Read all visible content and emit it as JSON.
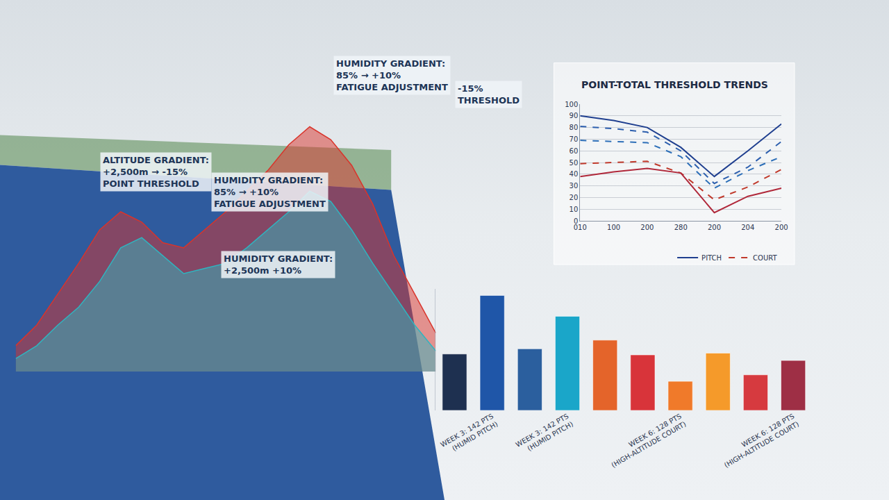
{
  "chart_data": [
    {
      "type": "area",
      "xlim": [
        0,
        40
      ],
      "ylim": [
        0,
        100
      ],
      "tick_labels": false,
      "grid": false,
      "x": [
        0,
        2,
        4,
        6,
        8,
        10,
        12,
        14,
        16,
        18,
        20,
        22,
        24,
        26,
        28,
        30,
        32,
        34,
        36,
        38,
        40
      ],
      "series": [
        {
          "color": "#d9342b",
          "values": [
            10,
            18,
            30,
            42,
            55,
            62,
            58,
            50,
            48,
            55,
            62,
            70,
            78,
            88,
            95,
            90,
            80,
            65,
            45,
            30,
            15
          ]
        },
        {
          "color": "#2fb5c0",
          "values": [
            5,
            10,
            18,
            25,
            35,
            48,
            52,
            45,
            38,
            40,
            42,
            48,
            55,
            62,
            70,
            66,
            55,
            42,
            30,
            18,
            8
          ]
        }
      ],
      "annotations": [
        {
          "lines": [
            "ALTITUDE GRADIENT:",
            "+2,500m → -15%",
            "POINT THRESHOLD"
          ]
        },
        {
          "lines": [
            "HUMIDITY GRADIENT:",
            "85% → +10%",
            "FATIGUE ADJUSTMENT"
          ]
        },
        {
          "lines": [
            "HUMIDITY GRADIENT:",
            "85% → +10%",
            "FATIGUE ADJUSTMENT"
          ]
        },
        {
          "lines": [
            "-15%",
            "THRESHOLD"
          ]
        },
        {
          "lines": [
            "HUMIDITY GRADIENT:",
            "+2,500m +10%"
          ]
        }
      ]
    },
    {
      "type": "line",
      "title": "POINT-TOTAL THRESHOLD TRENDS",
      "categories": [
        "010",
        "100",
        "200",
        "280",
        "200",
        "204",
        "200"
      ],
      "ylim": [
        0,
        100
      ],
      "yticks": [
        0,
        10,
        20,
        30,
        40,
        50,
        60,
        70,
        80,
        90,
        100
      ],
      "grid": true,
      "legend": "bottom right",
      "series": [
        {
          "name": "PITCH",
          "color": "#1f3f8f",
          "line_style": "solid",
          "values": [
            90,
            86,
            80,
            63,
            38,
            60,
            83
          ]
        },
        {
          "color": "#2d5fae",
          "line_style": "dashed",
          "values": [
            81,
            79,
            76,
            60,
            32,
            46,
            68
          ]
        },
        {
          "color": "#2d6fb8",
          "line_style": "dashed",
          "values": [
            69,
            68,
            67,
            55,
            28,
            43,
            55
          ]
        },
        {
          "name": "COURT",
          "color": "#c0392b",
          "line_style": "dashed",
          "values": [
            49,
            50,
            51,
            41,
            18,
            29,
            44
          ]
        },
        {
          "color": "#b0283a",
          "line_style": "solid",
          "values": [
            38,
            42,
            45,
            41,
            7,
            21,
            28
          ]
        }
      ]
    },
    {
      "type": "bar",
      "categories": [
        null,
        "WEEK 3: 142 PTS (HUMID PITCH)",
        null,
        "WEEK 3: 142 PTS (HUMID PITCH)",
        null,
        null,
        "WEEK 6: 128 PTS (HIGH-ALTITUDE COURT)",
        null,
        null,
        "WEEK 6: 128 PTS (HIGH-ALTITUDE COURT)"
      ],
      "values": [
        130,
        265,
        142,
        217,
        162,
        128,
        67,
        132,
        82,
        115
      ],
      "colors": [
        "#1e3050",
        "#1f56a8",
        "#2b5f9e",
        "#1aa6c9",
        "#e4642a",
        "#d8343a",
        "#f07a2a",
        "#f59a2a",
        "#d63a3f",
        "#9e2f45"
      ],
      "ylim": [
        0,
        280
      ],
      "tick_labels": "x",
      "grid": false
    }
  ]
}
